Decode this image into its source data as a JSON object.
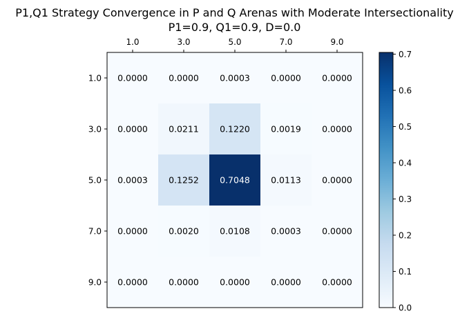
{
  "chart_data": {
    "type": "heatmap",
    "title": "P1,Q1 Strategy Convergence in P and Q Arenas with Moderate Intersectionality",
    "subtitle": "P1=0.9, Q1=0.9, D=0.0",
    "x_categories": [
      "1.0",
      "3.0",
      "5.0",
      "7.0",
      "9.0"
    ],
    "y_categories": [
      "1.0",
      "3.0",
      "5.0",
      "7.0",
      "9.0"
    ],
    "x_tick_position": "top",
    "values": [
      [
        0.0,
        0.0,
        0.0003,
        0.0,
        0.0
      ],
      [
        0.0,
        0.0211,
        0.122,
        0.0019,
        0.0
      ],
      [
        0.0003,
        0.1252,
        0.7048,
        0.0113,
        0.0
      ],
      [
        0.0,
        0.002,
        0.0108,
        0.0003,
        0.0
      ],
      [
        0.0,
        0.0,
        0.0,
        0.0,
        0.0
      ]
    ],
    "value_labels": [
      [
        "0.0000",
        "0.0000",
        "0.0003",
        "0.0000",
        "0.0000"
      ],
      [
        "0.0000",
        "0.0211",
        "0.1220",
        "0.0019",
        "0.0000"
      ],
      [
        "0.0003",
        "0.1252",
        "0.7048",
        "0.0113",
        "0.0000"
      ],
      [
        "0.0000",
        "0.0020",
        "0.0108",
        "0.0003",
        "0.0000"
      ],
      [
        "0.0000",
        "0.0000",
        "0.0000",
        "0.0000",
        "0.0000"
      ]
    ],
    "colorbar": {
      "range": [
        0,
        0.7048
      ],
      "ticks": [
        0.0,
        0.1,
        0.2,
        0.3,
        0.4,
        0.5,
        0.6,
        0.7
      ],
      "tick_labels": [
        "0.0",
        "0.1",
        "0.2",
        "0.3",
        "0.4",
        "0.5",
        "0.6",
        "0.7"
      ],
      "colormap": "Blues",
      "color_low": "#f7fbff",
      "color_high": "#08306b"
    },
    "grid": false
  }
}
